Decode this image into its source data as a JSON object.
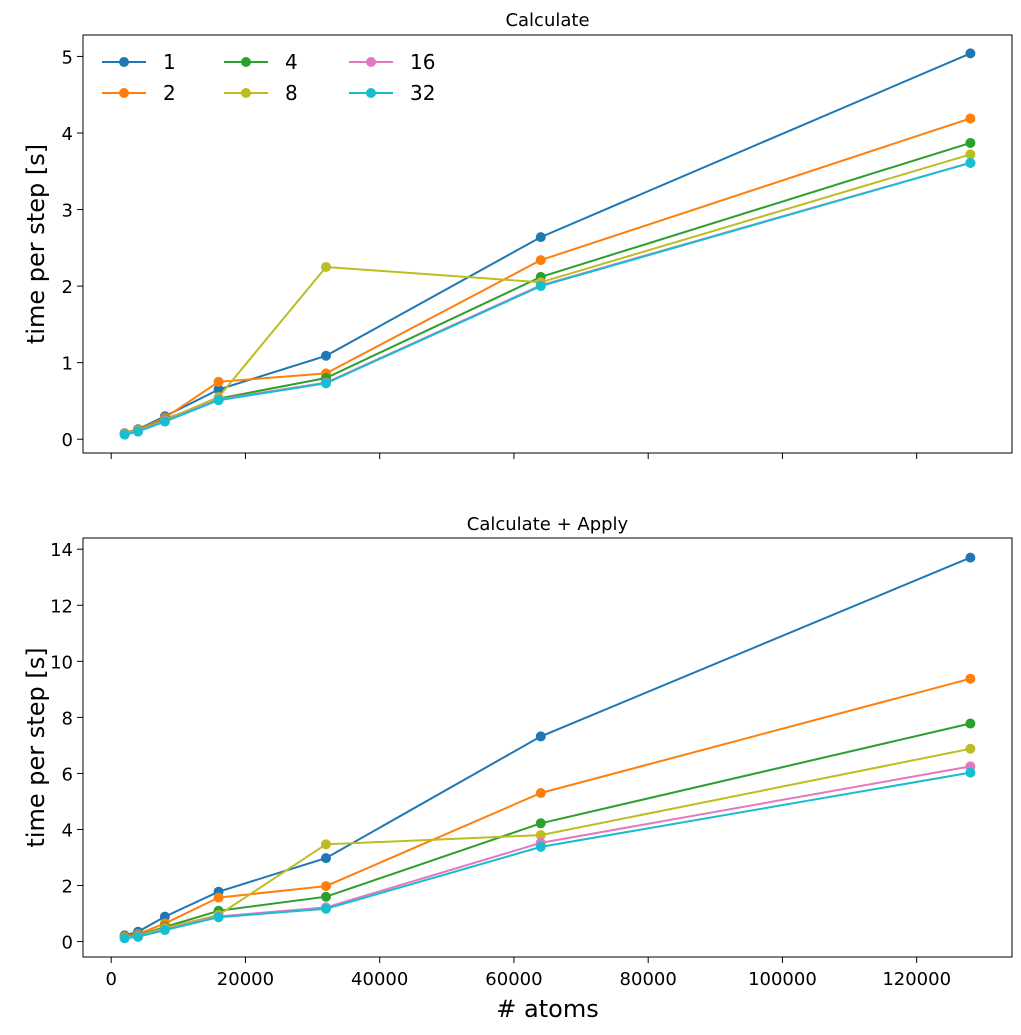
{
  "chart_data": [
    {
      "type": "line",
      "title": "Calculate",
      "xlabel": "",
      "ylabel": "time per step [s]",
      "x": [
        2000,
        4000,
        8000,
        16000,
        32000,
        64000,
        128000
      ],
      "xlim": [
        -4200,
        134200
      ],
      "ylim": [
        -0.18,
        5.28
      ],
      "xticks": [
        0,
        20000,
        40000,
        60000,
        80000,
        100000,
        120000
      ],
      "xtick_labels_visible": false,
      "yticks": [
        0,
        1,
        2,
        3,
        4,
        5
      ],
      "ytick_labels": [
        "0",
        "1",
        "2",
        "3",
        "4",
        "5"
      ],
      "legend": {
        "placement": "top-left",
        "columns": 3
      },
      "series": [
        {
          "name": "1",
          "color": "#1f77b4",
          "values": [
            0.08,
            0.13,
            0.3,
            0.65,
            1.09,
            2.64,
            5.04
          ]
        },
        {
          "name": "2",
          "color": "#ff7f0e",
          "values": [
            0.08,
            0.12,
            0.28,
            0.75,
            0.86,
            2.34,
            4.19
          ]
        },
        {
          "name": "4",
          "color": "#2ca02c",
          "values": [
            0.07,
            0.11,
            0.26,
            0.53,
            0.8,
            2.12,
            3.87
          ]
        },
        {
          "name": "8",
          "color": "#bcbd22",
          "values": [
            0.07,
            0.11,
            0.25,
            0.55,
            2.25,
            2.05,
            3.72
          ]
        },
        {
          "name": "16",
          "color": "#e377c2",
          "values": [
            0.06,
            0.1,
            0.24,
            0.52,
            0.74,
            2.01,
            3.61
          ]
        },
        {
          "name": "32",
          "color": "#17becf",
          "values": [
            0.06,
            0.1,
            0.23,
            0.51,
            0.73,
            2.0,
            3.61
          ]
        }
      ]
    },
    {
      "type": "line",
      "title": "Calculate + Apply",
      "xlabel": "# atoms",
      "ylabel": "time per step [s]",
      "x": [
        2000,
        4000,
        8000,
        16000,
        32000,
        64000,
        128000
      ],
      "xlim": [
        -4200,
        134200
      ],
      "ylim": [
        -0.55,
        14.4
      ],
      "xticks": [
        0,
        20000,
        40000,
        60000,
        80000,
        100000,
        120000
      ],
      "xtick_labels": [
        "0",
        "20000",
        "40000",
        "60000",
        "80000",
        "100000",
        "120000"
      ],
      "yticks": [
        0,
        2,
        4,
        6,
        8,
        10,
        12,
        14
      ],
      "ytick_labels": [
        "0",
        "2",
        "4",
        "6",
        "8",
        "10",
        "12",
        "14"
      ],
      "series": [
        {
          "name": "1",
          "color": "#1f77b4",
          "values": [
            0.22,
            0.35,
            0.89,
            1.78,
            2.98,
            7.32,
            13.7
          ]
        },
        {
          "name": "2",
          "color": "#ff7f0e",
          "values": [
            0.18,
            0.27,
            0.65,
            1.57,
            1.98,
            5.3,
            9.38
          ]
        },
        {
          "name": "4",
          "color": "#2ca02c",
          "values": [
            0.15,
            0.22,
            0.52,
            1.1,
            1.6,
            4.22,
            7.78
          ]
        },
        {
          "name": "8",
          "color": "#bcbd22",
          "values": [
            0.14,
            0.2,
            0.48,
            0.95,
            3.47,
            3.8,
            6.88
          ]
        },
        {
          "name": "16",
          "color": "#e377c2",
          "values": [
            0.12,
            0.18,
            0.43,
            0.9,
            1.22,
            3.52,
            6.25
          ]
        },
        {
          "name": "32",
          "color": "#17becf",
          "values": [
            0.12,
            0.17,
            0.41,
            0.87,
            1.17,
            3.38,
            6.03
          ]
        }
      ]
    }
  ]
}
